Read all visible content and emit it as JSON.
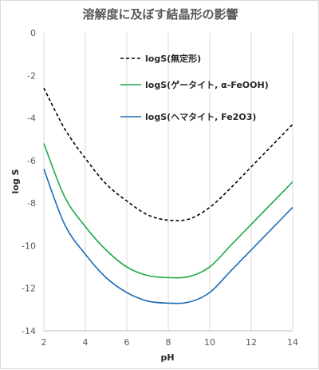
{
  "chart_data": {
    "type": "line",
    "title": "溶解度に及ぼす結晶形の影響",
    "xlabel": "pH",
    "ylabel": "log S",
    "xlim": [
      2,
      14
    ],
    "ylim": [
      -14,
      0
    ],
    "x_ticks": [
      "2",
      "4",
      "6",
      "8",
      "10",
      "12",
      "14"
    ],
    "y_ticks": [
      "0",
      "-2",
      "-4",
      "-6",
      "-8",
      "-10",
      "-12",
      "-14"
    ],
    "grid": "vertical",
    "legend_position": "inside-top-right",
    "x": [
      2,
      3,
      4,
      5,
      6,
      7,
      8,
      9,
      10,
      11,
      12,
      13,
      14
    ],
    "series": [
      {
        "name": "logS(無定形)",
        "color": "#000000",
        "dash": "dashed",
        "values": [
          -2.6,
          -4.5,
          -5.9,
          -7.1,
          -7.9,
          -8.55,
          -8.8,
          -8.75,
          -8.2,
          -7.3,
          -6.3,
          -5.3,
          -4.3
        ]
      },
      {
        "name": "logS(ゲータイト, α-FeOOH)",
        "color": "#1ca848",
        "dash": "solid",
        "values": [
          -5.2,
          -7.7,
          -9.1,
          -10.2,
          -11.0,
          -11.4,
          -11.5,
          -11.45,
          -11.0,
          -10.0,
          -9.0,
          -8.0,
          -7.0
        ]
      },
      {
        "name": "logS(ヘマタイト, Fe2O3)",
        "color": "#1b6bb8",
        "dash": "solid",
        "values": [
          -6.4,
          -9.0,
          -10.4,
          -11.5,
          -12.2,
          -12.6,
          -12.7,
          -12.65,
          -12.2,
          -11.2,
          -10.2,
          -9.2,
          -8.2
        ]
      }
    ]
  }
}
